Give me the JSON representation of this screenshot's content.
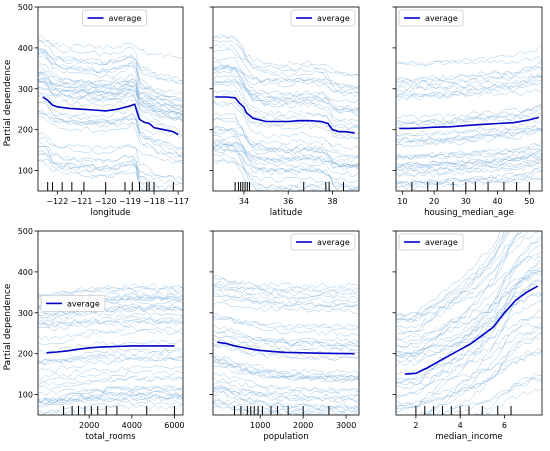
{
  "figure": {
    "y_axis_label": "Partial dependence",
    "legend_label": "average",
    "colors": {
      "average_line": "#0000c8",
      "ice_lines": "#7fb2dc",
      "rug": "#000000",
      "axes": "#000000"
    }
  },
  "chart_data": [
    {
      "type": "line",
      "title": "",
      "xlabel": "longitude",
      "ylabel": "Partial dependence",
      "xlim": [
        -122.8,
        -116.8
      ],
      "ylim": [
        50,
        500
      ],
      "xticks": [
        -122,
        -121,
        -120,
        -119,
        -118,
        -117
      ],
      "xtick_labels": [
        "−122",
        "−121",
        "−120",
        "−119",
        "−118",
        "−117"
      ],
      "yticks": [
        100,
        200,
        300,
        400,
        500
      ],
      "ytick_labels": [
        "100",
        "200",
        "300",
        "400",
        "500"
      ],
      "legend": "top-center",
      "series": [
        {
          "name": "average",
          "x": [
            -122.6,
            -122.4,
            -122.2,
            -122.0,
            -121.5,
            -121.0,
            -120.5,
            -120.0,
            -119.5,
            -119.0,
            -118.8,
            -118.6,
            -118.4,
            -118.2,
            -118.0,
            -117.6,
            -117.2,
            -117.0
          ],
          "y": [
            280,
            272,
            260,
            256,
            252,
            250,
            248,
            246,
            250,
            258,
            262,
            225,
            218,
            215,
            205,
            200,
            195,
            188
          ]
        }
      ],
      "rug": [
        -122.4,
        -122.2,
        -121.8,
        -121.4,
        -120.9,
        -120.0,
        -119.2,
        -118.9,
        -118.6,
        -118.3,
        -118.2,
        -118.0,
        -117.2
      ]
    },
    {
      "type": "line",
      "title": "",
      "xlabel": "latitude",
      "ylabel": "",
      "xlim": [
        32.6,
        39.2
      ],
      "ylim": [
        50,
        500
      ],
      "xticks": [
        34,
        36,
        38
      ],
      "xtick_labels": [
        "34",
        "36",
        "38"
      ],
      "yticks": [
        100,
        200,
        300,
        400,
        500
      ],
      "ytick_labels": [
        "",
        "",
        "",
        "",
        ""
      ],
      "legend": "top-right",
      "series": [
        {
          "name": "average",
          "x": [
            32.7,
            33.2,
            33.6,
            33.8,
            34.0,
            34.1,
            34.4,
            35.0,
            35.5,
            36.0,
            36.5,
            37.0,
            37.5,
            37.8,
            38.0,
            38.3,
            38.6,
            39.0
          ],
          "y": [
            280,
            280,
            278,
            265,
            255,
            242,
            228,
            220,
            220,
            220,
            222,
            222,
            220,
            215,
            200,
            195,
            195,
            192
          ]
        }
      ],
      "rug": [
        33.6,
        33.75,
        33.85,
        33.95,
        34.05,
        34.15,
        34.25,
        36.7,
        37.7,
        37.85,
        38.5
      ]
    },
    {
      "type": "line",
      "title": "",
      "xlabel": "housing_median_age",
      "ylabel": "",
      "xlim": [
        8,
        54
      ],
      "ylim": [
        50,
        500
      ],
      "xticks": [
        10,
        20,
        30,
        40,
        50
      ],
      "xtick_labels": [
        "10",
        "20",
        "30",
        "40",
        "50"
      ],
      "yticks": [
        100,
        200,
        300,
        400,
        500
      ],
      "ytick_labels": [
        "",
        "",
        "",
        "",
        ""
      ],
      "legend": "top-left",
      "series": [
        {
          "name": "average",
          "x": [
            9,
            12,
            16,
            20,
            25,
            30,
            35,
            40,
            45,
            50,
            53
          ],
          "y": [
            203,
            203,
            204,
            206,
            207,
            210,
            213,
            215,
            217,
            224,
            230
          ]
        }
      ],
      "rug": [
        13,
        18,
        21,
        26,
        30,
        33,
        37,
        42,
        46,
        50
      ]
    },
    {
      "type": "line",
      "title": "",
      "xlabel": "total_rooms",
      "ylabel": "Partial dependence",
      "xlim": [
        -400,
        6400
      ],
      "ylim": [
        50,
        500
      ],
      "xticks": [
        2000,
        4000,
        6000
      ],
      "xtick_labels": [
        "2000",
        "4000",
        "6000"
      ],
      "yticks": [
        100,
        200,
        300,
        400,
        500
      ],
      "ytick_labels": [
        "100",
        "200",
        "300",
        "400",
        "500"
      ],
      "legend": "center-left",
      "series": [
        {
          "name": "average",
          "x": [
            0,
            500,
            1000,
            1500,
            2000,
            2500,
            3000,
            3500,
            4000,
            5000,
            6000
          ],
          "y": [
            202,
            204,
            207,
            211,
            214,
            216,
            217,
            218,
            219,
            219,
            219
          ]
        }
      ],
      "rug": [
        800,
        1200,
        1500,
        1800,
        2100,
        2400,
        2800,
        3300,
        4700,
        6000
      ]
    },
    {
      "type": "line",
      "title": "",
      "xlabel": "population",
      "ylabel": "",
      "xlim": [
        -100,
        3300
      ],
      "ylim": [
        50,
        500
      ],
      "xticks": [
        1000,
        2000,
        3000
      ],
      "xtick_labels": [
        "1000",
        "2000",
        "3000"
      ],
      "yticks": [
        100,
        200,
        300,
        400,
        500
      ],
      "ytick_labels": [
        "",
        "",
        "",
        "",
        ""
      ],
      "legend": "top-right",
      "series": [
        {
          "name": "average",
          "x": [
            0,
            200,
            400,
            600,
            800,
            1000,
            1300,
            1600,
            2000,
            2500,
            3200
          ],
          "y": [
            228,
            225,
            219,
            215,
            211,
            208,
            205,
            203,
            202,
            201,
            200
          ]
        }
      ],
      "rug": [
        400,
        550,
        700,
        780,
        860,
        950,
        1050,
        1250,
        1400,
        1650,
        2000,
        2600
      ]
    },
    {
      "type": "line",
      "title": "",
      "xlabel": "median_income",
      "ylabel": "",
      "xlim": [
        1.1,
        7.7
      ],
      "ylim": [
        50,
        500
      ],
      "xticks": [
        2,
        4,
        6
      ],
      "xtick_labels": [
        "2",
        "4",
        "6"
      ],
      "yticks": [
        100,
        200,
        300,
        400,
        500
      ],
      "ytick_labels": [
        "",
        "",
        "",
        "",
        ""
      ],
      "legend": "top-left",
      "series": [
        {
          "name": "average",
          "x": [
            1.5,
            2.0,
            2.5,
            3.0,
            3.5,
            4.0,
            4.5,
            5.0,
            5.5,
            6.0,
            6.5,
            7.0,
            7.5
          ],
          "y": [
            150,
            152,
            165,
            180,
            195,
            210,
            225,
            245,
            265,
            300,
            330,
            350,
            365
          ]
        }
      ],
      "rug": [
        2.0,
        2.4,
        2.8,
        3.2,
        3.6,
        4.0,
        4.4,
        5.0,
        5.7,
        6.3
      ]
    }
  ]
}
